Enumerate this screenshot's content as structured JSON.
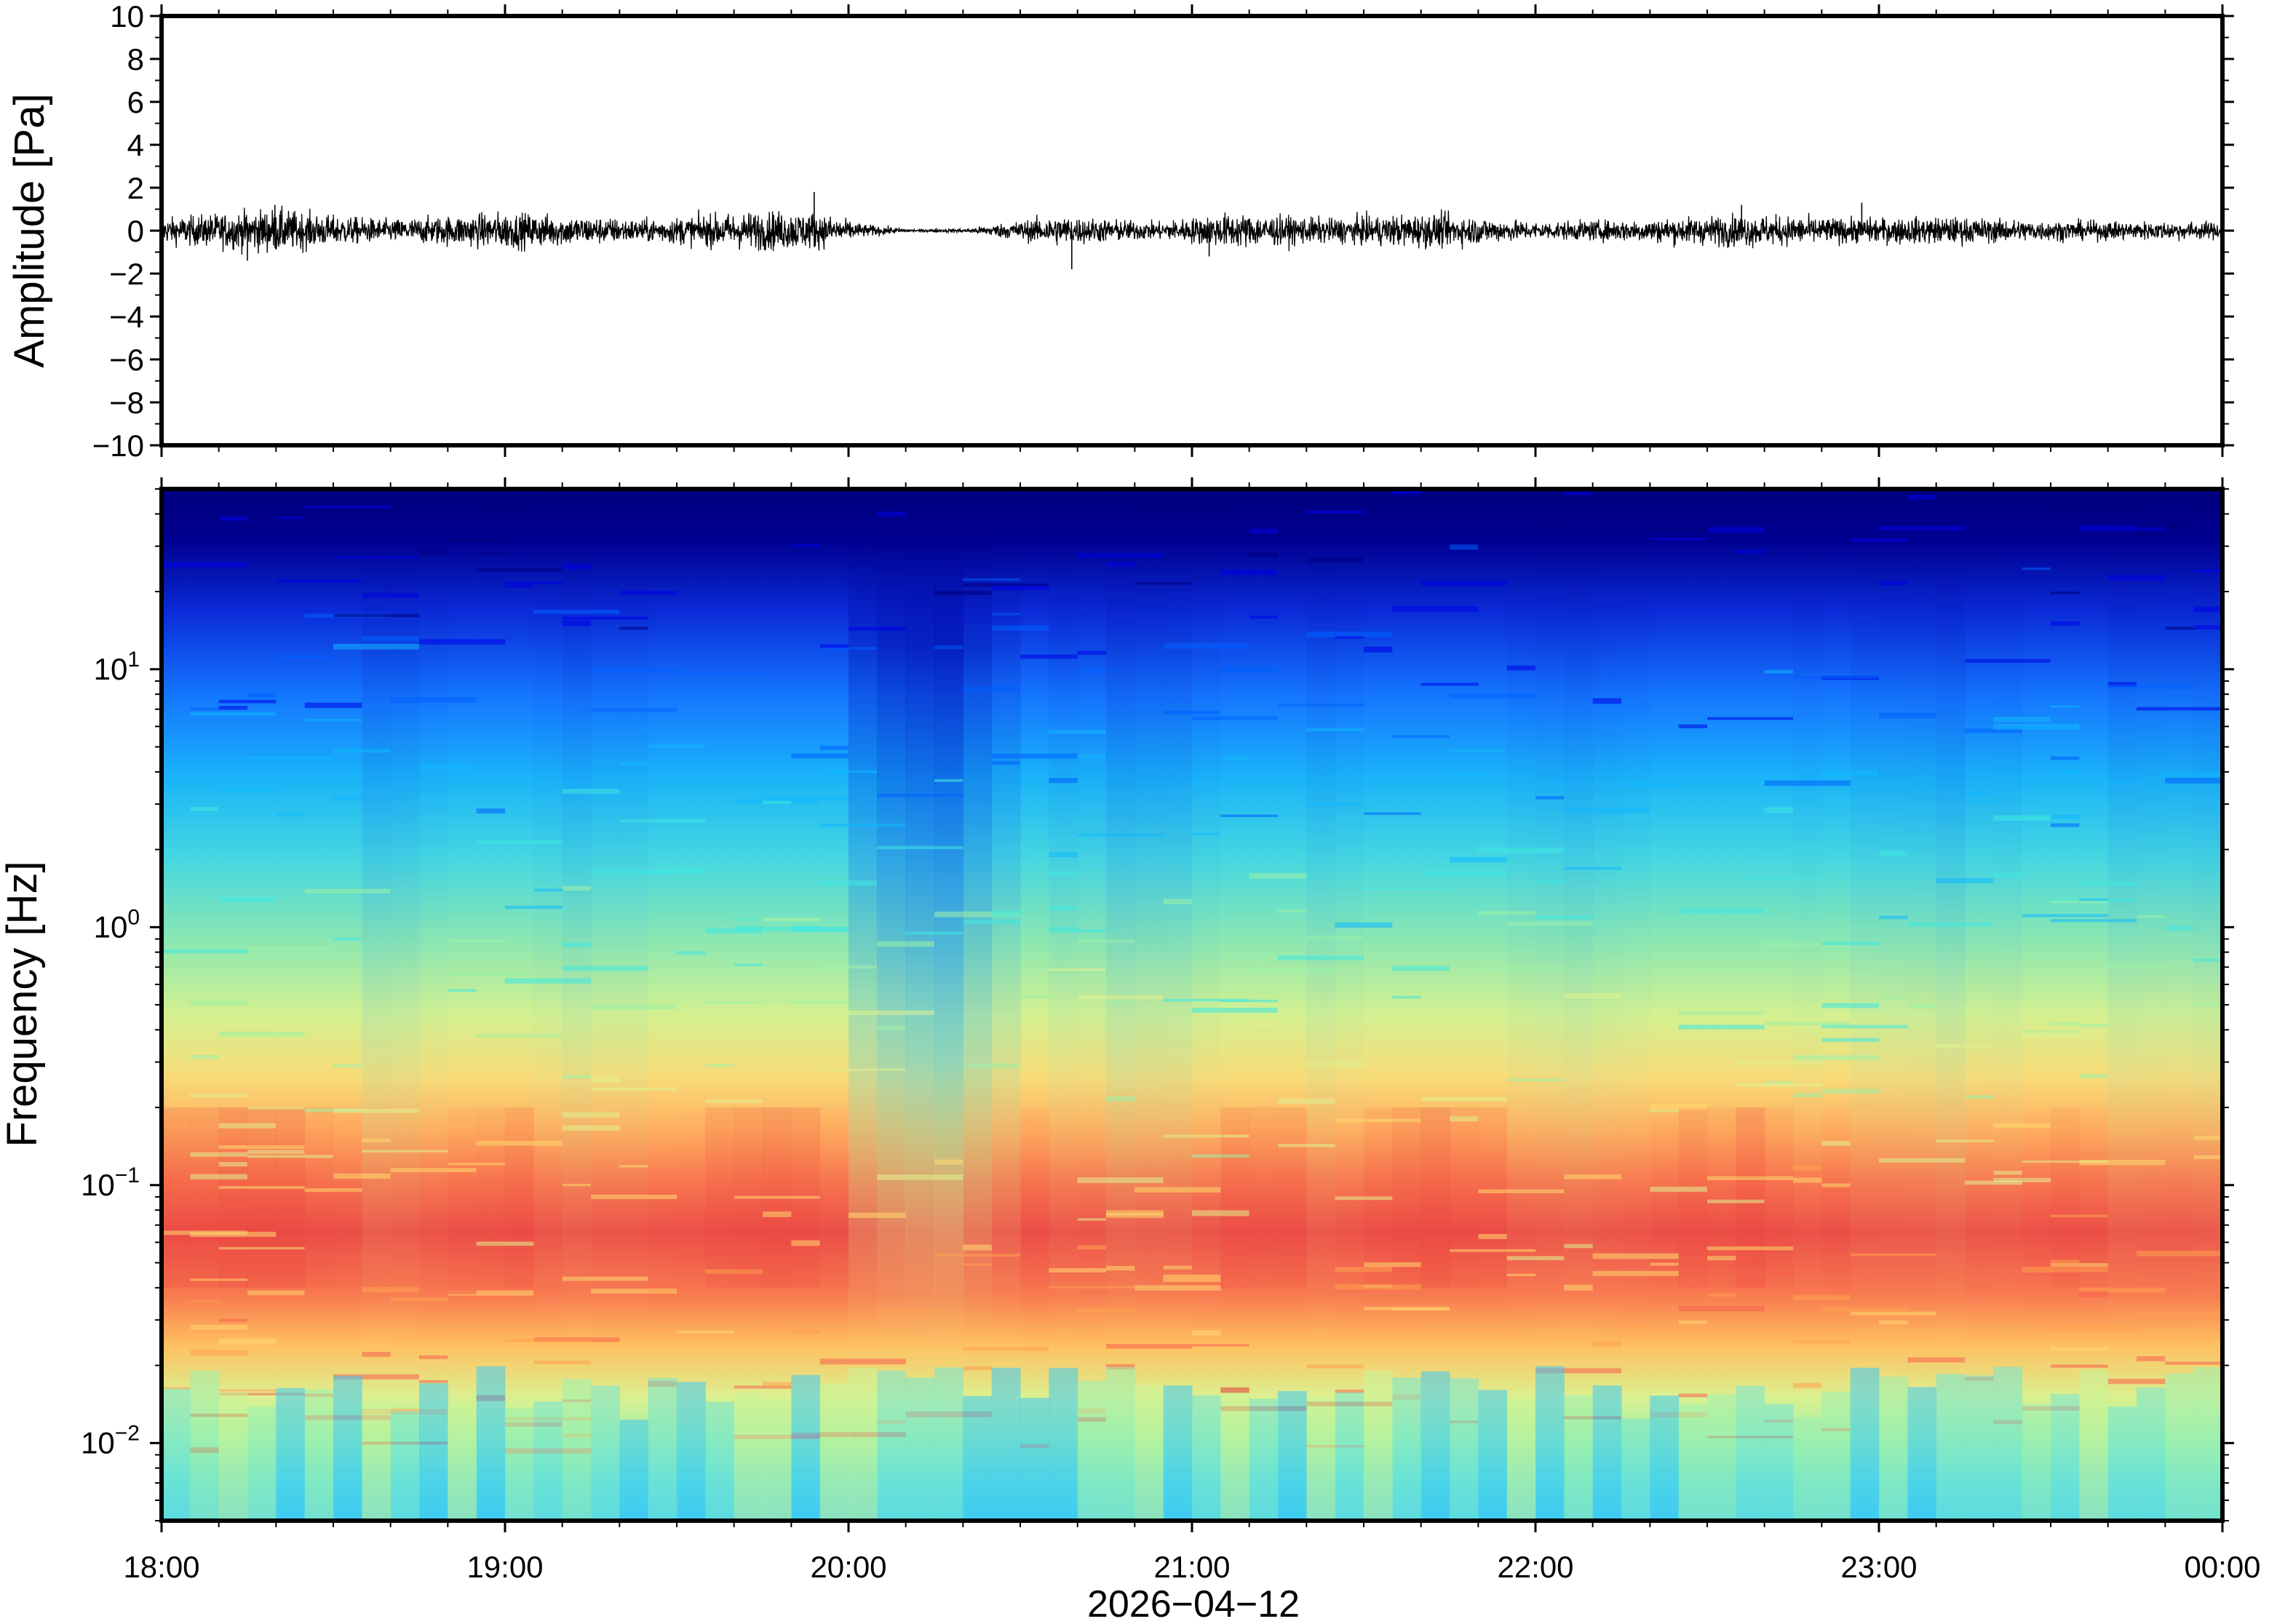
{
  "chart_data": [
    {
      "type": "line",
      "ylabel": "Amplitude [Pa]",
      "ylim": [
        -10,
        10
      ],
      "y_ticks": [
        10,
        8,
        6,
        4,
        2,
        0,
        -2,
        -4,
        -6,
        -8,
        -10
      ],
      "y_tick_labels": [
        "10",
        "8",
        "6",
        "4",
        "2",
        "0",
        "−2",
        "−4",
        "−6",
        "−8",
        "−10"
      ],
      "x_range_hours": [
        18,
        24
      ],
      "noise_envelope": {
        "times": [
          18.0,
          18.33,
          18.5,
          18.67,
          19.0,
          19.4,
          19.75,
          19.9,
          20.05,
          20.2,
          20.35,
          20.6,
          20.9,
          21.1,
          21.4,
          21.7,
          22.0,
          22.3,
          22.6,
          22.9,
          23.2,
          23.5,
          24.0
        ],
        "amplitudes": [
          0.5,
          0.9,
          0.6,
          0.45,
          0.75,
          0.45,
          0.8,
          0.75,
          0.25,
          0.05,
          0.1,
          0.6,
          0.35,
          0.7,
          0.5,
          0.7,
          0.35,
          0.45,
          0.65,
          0.5,
          0.55,
          0.4,
          0.35
        ]
      },
      "peaks": [
        {
          "time": 18.33,
          "value": 1.2
        },
        {
          "time": 18.25,
          "value": -1.4
        },
        {
          "time": 19.9,
          "value": 1.8
        },
        {
          "time": 20.65,
          "value": -1.8
        },
        {
          "time": 21.05,
          "value": -1.2
        },
        {
          "time": 22.6,
          "value": 1.2
        },
        {
          "time": 22.95,
          "value": 1.3
        }
      ]
    },
    {
      "type": "heatmap",
      "ylabel": "Frequency [Hz]",
      "yscale": "log",
      "ylim": [
        0.005,
        50
      ],
      "y_ticks": [
        0.01,
        0.1,
        1,
        10
      ],
      "y_tick_labels": [
        {
          "base": "10",
          "exp": "−2"
        },
        {
          "base": "10",
          "exp": "−1"
        },
        {
          "base": "10",
          "exp": "0"
        },
        {
          "base": "10",
          "exp": "1"
        }
      ],
      "colormap": [
        "#00007f",
        "#0000e8",
        "#0060ff",
        "#10b8ff",
        "#40e8e0",
        "#9cf0a8",
        "#e0f090",
        "#ffd870",
        "#ffa050",
        "#f86050",
        "#e03838"
      ],
      "column_activity": [
        {
          "time": 18.0,
          "level": 0.85
        },
        {
          "time": 18.33,
          "level": 1.0
        },
        {
          "time": 18.67,
          "level": 0.65
        },
        {
          "time": 19.0,
          "level": 0.9
        },
        {
          "time": 19.3,
          "level": 0.7
        },
        {
          "time": 19.5,
          "level": 0.85
        },
        {
          "time": 19.9,
          "level": 0.95
        },
        {
          "time": 20.05,
          "level": 0.5
        },
        {
          "time": 20.2,
          "level": 0.2
        },
        {
          "time": 20.35,
          "level": 0.3
        },
        {
          "time": 20.5,
          "level": 0.85
        },
        {
          "time": 20.9,
          "level": 0.6
        },
        {
          "time": 21.1,
          "level": 0.9
        },
        {
          "time": 21.45,
          "level": 0.75
        },
        {
          "time": 21.75,
          "level": 0.95
        },
        {
          "time": 22.0,
          "level": 0.7
        },
        {
          "time": 22.3,
          "level": 0.8
        },
        {
          "time": 22.6,
          "level": 0.9
        },
        {
          "time": 22.9,
          "level": 0.75
        },
        {
          "time": 23.2,
          "level": 0.7
        },
        {
          "time": 23.5,
          "level": 0.8
        },
        {
          "time": 24.0,
          "level": 0.65
        }
      ]
    }
  ],
  "x_axis": {
    "ticks_hours": [
      18,
      19,
      20,
      21,
      22,
      23,
      24
    ],
    "tick_labels": [
      "18:00",
      "19:00",
      "20:00",
      "21:00",
      "22:00",
      "23:00",
      "00:00"
    ],
    "xlabel": "2026−04−12"
  }
}
